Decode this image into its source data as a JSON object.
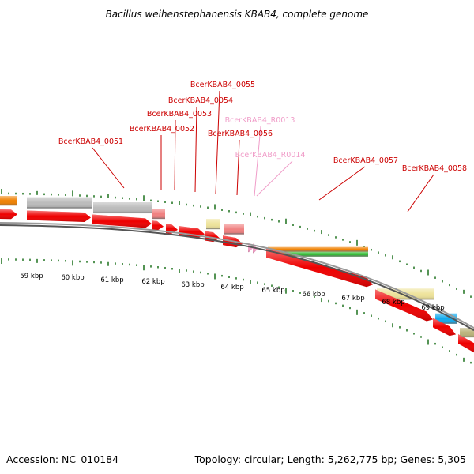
{
  "header": {
    "title": "Bacillus weihenstephanensis KBAB4, complete genome"
  },
  "footer": {
    "accession": "Accession: NC_010184",
    "summary": "Topology: circular; Length: 5,262,775 bp; Genes: 5,305"
  },
  "scale_labels": [
    "59 kbp",
    "60 kbp",
    "61 kbp",
    "62 kbp",
    "63 kbp",
    "64 kbp",
    "65 kbp",
    "66 kbp",
    "67 kbp",
    "68 kbp",
    "69 kbp"
  ],
  "gene_labels": [
    {
      "text": "BcerKBAB4_0051",
      "color": "#cc0000"
    },
    {
      "text": "BcerKBAB4_0052",
      "color": "#cc0000"
    },
    {
      "text": "BcerKBAB4_0053",
      "color": "#cc0000"
    },
    {
      "text": "BcerKBAB4_0054",
      "color": "#cc0000"
    },
    {
      "text": "BcerKBAB4_0055",
      "color": "#cc0000"
    },
    {
      "text": "BcerKBAB4_0056",
      "color": "#cc0000"
    },
    {
      "text": "BcerKBAB4_R0013",
      "color": "#f09cc8"
    },
    {
      "text": "BcerKBAB4_R0014",
      "color": "#f09cc8"
    },
    {
      "text": "BcerKBAB4_0057",
      "color": "#cc0000"
    },
    {
      "text": "BcerKBAB4_0058",
      "color": "#cc0000"
    }
  ],
  "colors": {
    "cds": "#ee0000",
    "rna": "#f5a0c8",
    "orange": "#f08000",
    "green": "#33bb33",
    "gray": "#bbbbbb",
    "salmon": "#f08080",
    "khaki": "#eee39a",
    "cyan": "#11aaee",
    "olive": "#bbb37a",
    "tick": "#2a7a2a",
    "backbone": "#777777"
  }
}
